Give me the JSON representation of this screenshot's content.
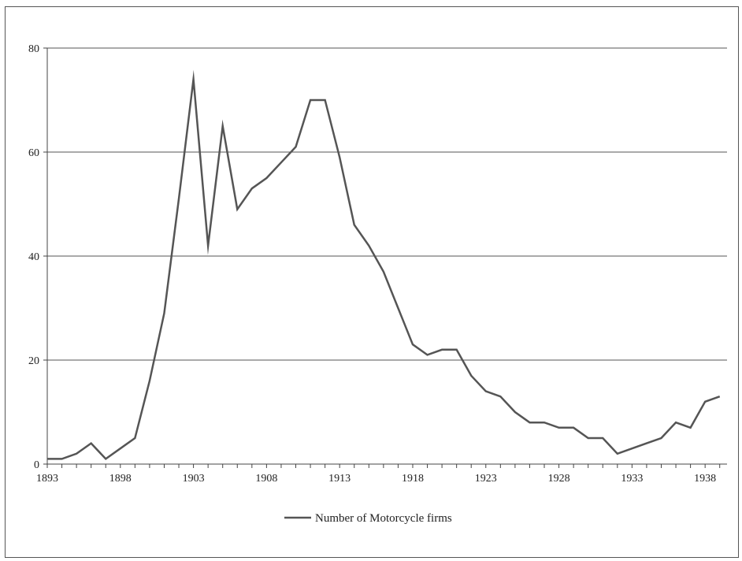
{
  "chart_data": {
    "type": "line",
    "title": "",
    "xlabel": "",
    "ylabel": "",
    "xlim": [
      1893,
      1939.5
    ],
    "ylim": [
      0,
      80
    ],
    "x_tick_values": [
      1893,
      1898,
      1903,
      1908,
      1913,
      1918,
      1923,
      1928,
      1933,
      1938
    ],
    "x_tick_labels": [
      "1893",
      "1898",
      "1903",
      "1908",
      "1913",
      "1918",
      "1923",
      "1928",
      "1933",
      "1938"
    ],
    "y_tick_values": [
      0,
      20,
      40,
      60,
      80
    ],
    "y_tick_labels": [
      "0",
      "20",
      "40",
      "60",
      "80"
    ],
    "grid": "horizontal",
    "legend_position": "bottom",
    "series": [
      {
        "name": "Number of Motorcycle firms",
        "color": "#555555",
        "x": [
          1893,
          1894,
          1895,
          1896,
          1897,
          1898,
          1899,
          1900,
          1901,
          1902,
          1903,
          1904,
          1905,
          1906,
          1907,
          1908,
          1909,
          1910,
          1911,
          1912,
          1913,
          1914,
          1915,
          1916,
          1917,
          1918,
          1919,
          1920,
          1921,
          1922,
          1923,
          1924,
          1925,
          1926,
          1927,
          1928,
          1929,
          1930,
          1931,
          1932,
          1933,
          1934,
          1935,
          1936,
          1937,
          1938,
          1939
        ],
        "y": [
          1,
          1,
          2,
          4,
          1,
          3,
          5,
          16,
          29,
          51,
          74,
          42,
          65,
          49,
          53,
          55,
          58,
          61,
          70,
          70,
          59,
          46,
          42,
          37,
          30,
          23,
          21,
          22,
          22,
          17,
          14,
          13,
          10,
          8,
          8,
          7,
          7,
          5,
          5,
          2,
          3,
          4,
          5,
          8,
          7,
          12,
          13
        ]
      }
    ]
  }
}
